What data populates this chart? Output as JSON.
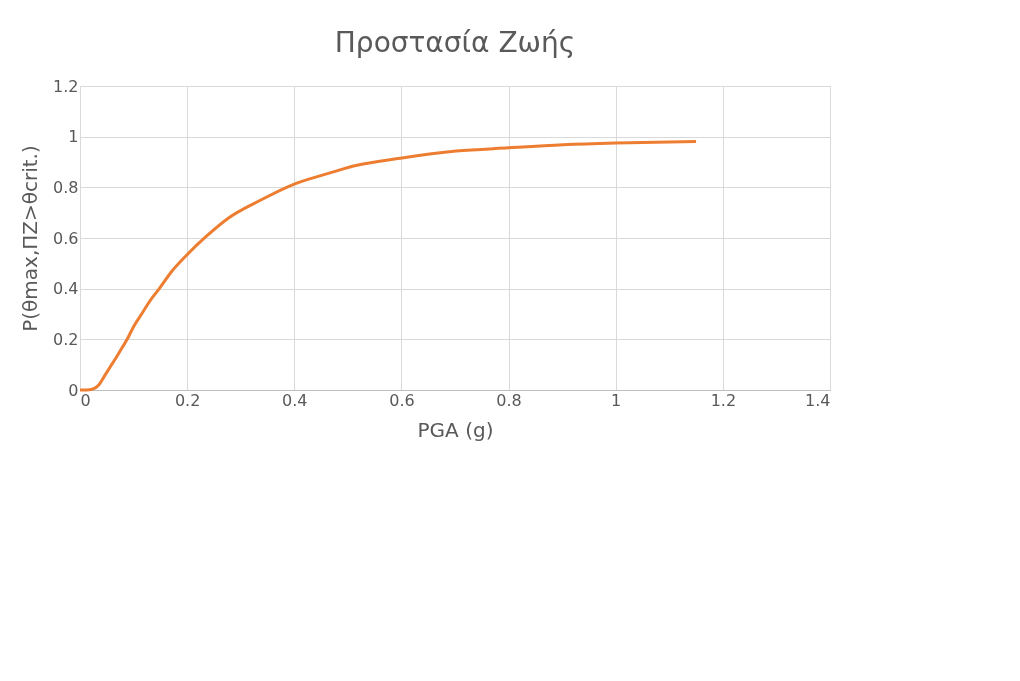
{
  "chart_data": {
    "type": "line",
    "title": "Προστασία Ζωής",
    "xlabel": "PGA (g)",
    "ylabel": "P(θmax,ΠΖ>θcrit.)",
    "x": [
      0,
      0.012,
      0.023,
      0.035,
      0.045,
      0.056,
      0.067,
      0.078,
      0.088,
      0.1,
      0.115,
      0.13,
      0.148,
      0.17,
      0.198,
      0.235,
      0.278,
      0.332,
      0.4,
      0.462,
      0.517,
      0.598,
      0.702,
      0.8,
      0.902,
      1.0,
      1.15
    ],
    "series": [
      {
        "color": "#ed7d31",
        "values": [
          0,
          0.0,
          0.003,
          0.02,
          0.053,
          0.09,
          0.126,
          0.165,
          0.2,
          0.25,
          0.3,
          0.35,
          0.4,
          0.465,
          0.53,
          0.605,
          0.68,
          0.744,
          0.813,
          0.854,
          0.887,
          0.915,
          0.943,
          0.956,
          0.968,
          0.975,
          0.981
        ]
      }
    ],
    "xlim": [
      0,
      1.4
    ],
    "xticks": [
      0,
      0.2,
      0.4,
      0.6,
      0.8,
      1,
      1.2,
      1.4
    ],
    "ylim": [
      0,
      1.2
    ],
    "yticks": [
      0,
      0.2,
      0.4,
      0.6,
      0.8,
      1,
      1.2
    ],
    "grid": true,
    "marker": "none",
    "line_style": "solid"
  }
}
